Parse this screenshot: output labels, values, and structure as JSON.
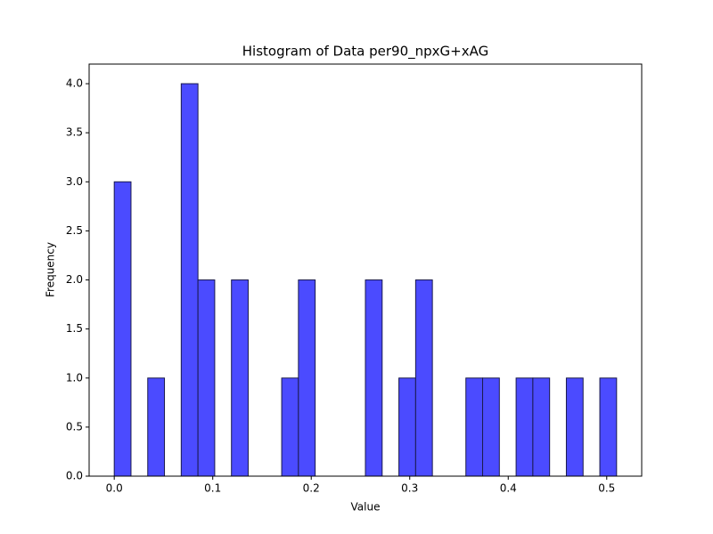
{
  "chart_data": {
    "type": "histogram",
    "title": "Histogram of Data per90_npxG+xAG",
    "x_label": "Value",
    "y_label": "Frequency",
    "bins": [
      0,
      0.017,
      0.034,
      0.051,
      0.068,
      0.085,
      0.102,
      0.119,
      0.136,
      0.153,
      0.17,
      0.187,
      0.204,
      0.221,
      0.238,
      0.255,
      0.272,
      0.289,
      0.306,
      0.323,
      0.34,
      0.357,
      0.374,
      0.391,
      0.408,
      0.425,
      0.442,
      0.459,
      0.476,
      0.493,
      0.51
    ],
    "counts": [
      3,
      0,
      1,
      0,
      4,
      2,
      0,
      2,
      0,
      0,
      1,
      2,
      0,
      0,
      0,
      2,
      0,
      1,
      2,
      0,
      0,
      1,
      1,
      0,
      1,
      1,
      0,
      1,
      0,
      1
    ],
    "color": "#4b4bff",
    "edge_color": "#1a1a4d",
    "xlim": [
      -0.0255,
      0.5355
    ],
    "xticks": [
      {
        "value": 0,
        "label": "0.0"
      },
      {
        "value": 0.1,
        "label": "0.1"
      },
      {
        "value": 0.2,
        "label": "0.2"
      },
      {
        "value": 0.3,
        "label": "0.3"
      },
      {
        "value": 0.4,
        "label": "0.4"
      },
      {
        "value": 0.5,
        "label": "0.5"
      }
    ],
    "ylim": [
      0,
      4.2
    ],
    "yticks": [
      {
        "value": 0,
        "label": "0.0"
      },
      {
        "value": 0.5,
        "label": "0.5"
      },
      {
        "value": 1,
        "label": "1.0"
      },
      {
        "value": 1.5,
        "label": "1.5"
      },
      {
        "value": 2,
        "label": "2.0"
      },
      {
        "value": 2.5,
        "label": "2.5"
      },
      {
        "value": 3,
        "label": "3.0"
      },
      {
        "value": 3.5,
        "label": "3.5"
      },
      {
        "value": 4,
        "label": "4.0"
      }
    ],
    "grid": false
  }
}
